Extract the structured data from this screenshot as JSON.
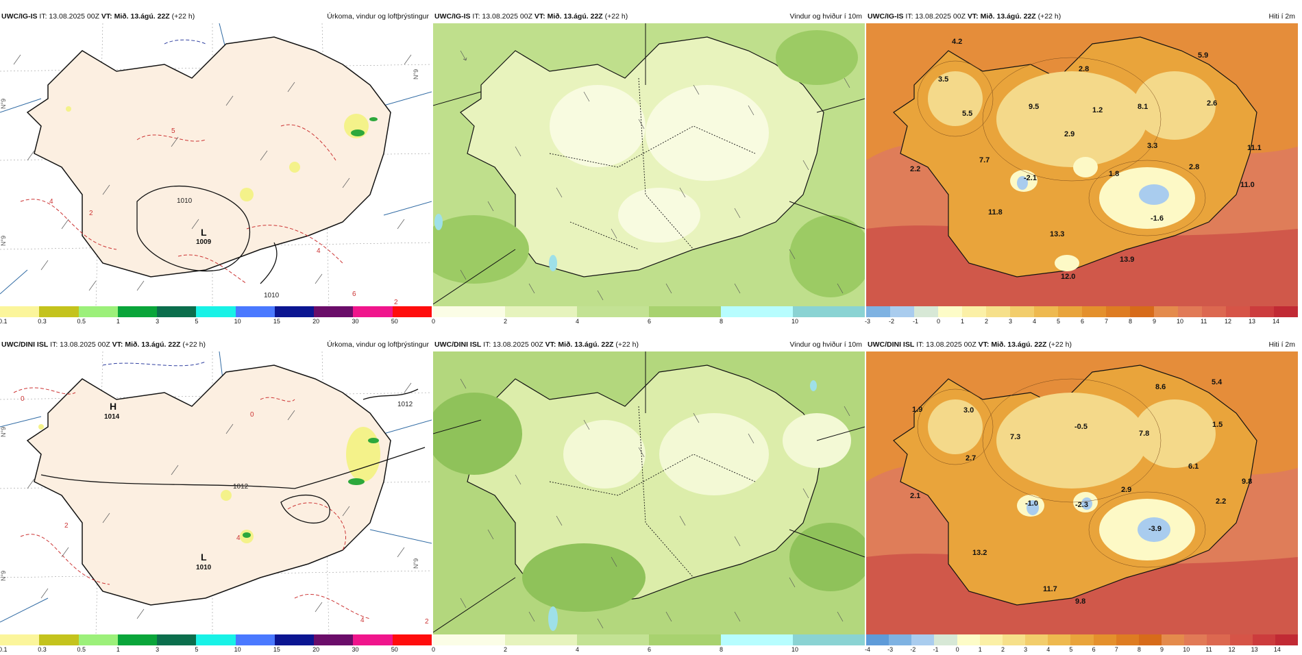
{
  "rows": [
    {
      "model": "UWC/IG-IS",
      "it": "IT: 13.08.2025 00Z",
      "vt": "VT: Mið. 13.ágú. 22Z",
      "lead": "(+22 h)",
      "panels": {
        "precip": {
          "title": "Úrkoma, vindur og loftþrýstingur",
          "isobar_labels": [
            "1010",
            "1010"
          ],
          "pressure_centres": [
            {
              "type": "L",
              "value": "1009"
            }
          ],
          "contour_labels": [
            "4",
            "2",
            "4",
            "6",
            "2",
            "5"
          ],
          "ridge_labels": [
            "N°9",
            "N°9",
            "N°9"
          ]
        },
        "wind": {
          "title": "Vindur og hviður í 10m"
        },
        "temp": {
          "title": "Hiti í 2m",
          "values": [
            "4.2",
            "3.5",
            "5.5",
            "9.5",
            "2.8",
            "1.2",
            "8.1",
            "5.9",
            "2.6",
            "2.9",
            "3.3",
            "7.7",
            "2.2",
            "-2.1",
            "1.8",
            "2.8",
            "11.1",
            "11.0",
            "11.8",
            "-1.6",
            "13.3",
            "13.9",
            "12.0"
          ]
        }
      }
    },
    {
      "model": "UWC/DINI ISL",
      "it": "IT: 13.08.2025 00Z",
      "vt": "VT: Mið. 13.ágú. 22Z",
      "lead": "(+22 h)",
      "panels": {
        "precip": {
          "title": "Úrkoma, vindur og loftþrýstingur",
          "isobar_labels": [
            "1012",
            "1012"
          ],
          "pressure_centres": [
            {
              "type": "H",
              "value": "1014"
            },
            {
              "type": "L",
              "value": "1010"
            }
          ],
          "contour_labels": [
            "0",
            "0",
            "2",
            "4",
            "4",
            "2"
          ],
          "ridge_labels": [
            "N°9",
            "N°9",
            "N°9"
          ]
        },
        "wind": {
          "title": "Vindur og hviður í 10m"
        },
        "temp": {
          "title": "Hiti í 2m",
          "values": [
            "8.6",
            "5.4",
            "1.9",
            "3.0",
            "-0.5",
            "7.3",
            "7.8",
            "1.5",
            "2.7",
            "6.1",
            "2.9",
            "9.8",
            "2.1",
            "-1.0",
            "-2.3",
            "2.2",
            "-3.9",
            "13.2",
            "11.7",
            "9.8"
          ]
        }
      }
    }
  ],
  "colorbars": {
    "precip": {
      "ticks": [
        "0.1",
        "0.3",
        "0.5",
        "1",
        "3",
        "5",
        "10",
        "15",
        "20",
        "30",
        "50"
      ],
      "colors": [
        "#fbf59b",
        "#c4c31d",
        "#9cf07a",
        "#0aa53a",
        "#0b6e4c",
        "#18f2e6",
        "#4a79ff",
        "#0b1591",
        "#6a0d69",
        "#f0158c",
        "#ff0d0d"
      ]
    },
    "wind": {
      "ticks": [
        "0",
        "2",
        "4",
        "6",
        "8",
        "10"
      ],
      "colors": [
        "#fbfde6",
        "#e6f3bd",
        "#c3e294",
        "#a8d26f",
        "#b7fdfe",
        "#8ad3d3"
      ]
    },
    "temp_top": {
      "ticks": [
        "-3",
        "-2",
        "-1",
        "0",
        "1",
        "2",
        "3",
        "4",
        "5",
        "6",
        "7",
        "8",
        "9",
        "10",
        "11",
        "12",
        "13",
        "14"
      ],
      "colors": [
        "#7eb2e2",
        "#a9ccee",
        "#d7e8d6",
        "#fdfcc8",
        "#fbf0a6",
        "#f6e08a",
        "#f2cd6b",
        "#eeb94f",
        "#e9a43b",
        "#e4902c",
        "#de7c22",
        "#d76b1a",
        "#e48b4c",
        "#e17a56",
        "#dc6850",
        "#d65447",
        "#cc3c3d",
        "#c12a34"
      ]
    },
    "temp_bottom": {
      "ticks": [
        "-4",
        "-3",
        "-2",
        "-1",
        "0",
        "1",
        "2",
        "3",
        "4",
        "5",
        "6",
        "7",
        "8",
        "9",
        "10",
        "11",
        "12",
        "13",
        "14"
      ],
      "colors": [
        "#5e9bd9",
        "#7eb2e2",
        "#a9ccee",
        "#d7e8d6",
        "#fdfcc8",
        "#fbf0a6",
        "#f6e08a",
        "#f2cd6b",
        "#eeb94f",
        "#e9a43b",
        "#e4902c",
        "#de7c22",
        "#d76b1a",
        "#e48b4c",
        "#e17a56",
        "#dc6850",
        "#d65447",
        "#cc3c3d",
        "#c12a34"
      ]
    }
  }
}
